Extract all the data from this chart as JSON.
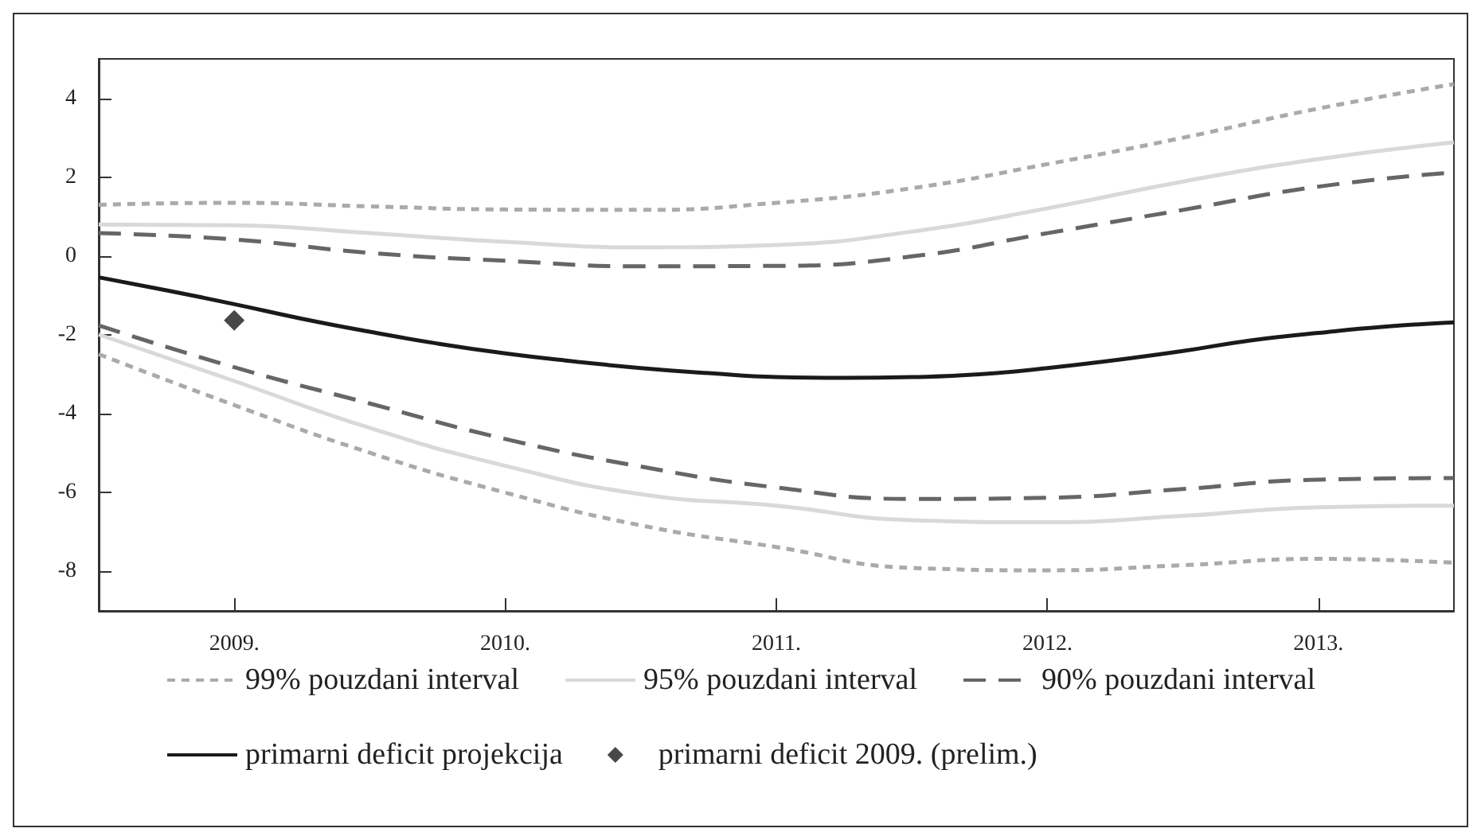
{
  "chart_data": {
    "type": "line",
    "x": [
      2008.5,
      2009,
      2009.5,
      2010,
      2010.5,
      2011,
      2011.5,
      2012,
      2012.5,
      2013,
      2013.5
    ],
    "xlim": [
      2008.5,
      2013.5
    ],
    "xticks": [
      {
        "value": 2009,
        "label": "2009."
      },
      {
        "value": 2010,
        "label": "2010."
      },
      {
        "value": 2011,
        "label": "2011."
      },
      {
        "value": 2012,
        "label": "2012."
      },
      {
        "value": 2013,
        "label": "2013."
      }
    ],
    "ylim": [
      -9,
      5
    ],
    "yticks": [
      -8,
      -6,
      -4,
      -2,
      0,
      2,
      4
    ],
    "grid": false,
    "legend": "bottom",
    "series": [
      {
        "name": "99% pouzdani interval",
        "color": "#aaaaaa",
        "line_style": "dotted",
        "values": [
          1.3,
          1.35,
          1.26,
          1.18,
          1.17,
          1.35,
          1.72,
          2.33,
          3.0,
          3.74,
          4.36
        ]
      },
      {
        "name": "95% pouzdani interval",
        "color": "#d9d9d9",
        "line_style": "solid",
        "values": [
          0.8,
          0.78,
          0.58,
          0.36,
          0.22,
          0.28,
          0.62,
          1.21,
          1.89,
          2.46,
          2.88
        ]
      },
      {
        "name": "90% pouzdani interval",
        "color": "#666666",
        "line_style": "dashed",
        "values": [
          0.58,
          0.42,
          0.08,
          -0.12,
          -0.26,
          -0.25,
          -0.01,
          0.58,
          1.17,
          1.76,
          2.12
        ]
      },
      {
        "color": "#aaaaaa",
        "line_style": "dotted",
        "values": [
          -2.49,
          -3.78,
          -4.99,
          -6.0,
          -6.83,
          -7.38,
          -7.91,
          -7.97,
          -7.84,
          -7.68,
          -7.78
        ]
      },
      {
        "color": "#d9d9d9",
        "line_style": "solid",
        "values": [
          -1.99,
          -3.17,
          -4.36,
          -5.32,
          -6.04,
          -6.33,
          -6.7,
          -6.75,
          -6.59,
          -6.37,
          -6.33
        ]
      },
      {
        "color": "#666666",
        "line_style": "dashed",
        "values": [
          -1.76,
          -2.82,
          -3.74,
          -4.64,
          -5.34,
          -5.87,
          -6.16,
          -6.13,
          -5.91,
          -5.67,
          -5.63
        ]
      },
      {
        "name": "primarni deficit projekcija",
        "color": "#1a1a1a",
        "line_style": "solid",
        "x": [
          2008.5,
          2008.75,
          2009,
          2009.25,
          2009.5,
          2009.75,
          2010,
          2010.25,
          2010.5,
          2010.75,
          2011,
          2011.25,
          2011.5,
          2011.75,
          2012,
          2012.25,
          2012.5,
          2012.75,
          2013,
          2013.25,
          2013.5
        ],
        "values": [
          -0.54,
          -0.87,
          -1.22,
          -1.59,
          -1.92,
          -2.22,
          -2.47,
          -2.67,
          -2.84,
          -2.97,
          -3.07,
          -3.09,
          -3.07,
          -3.0,
          -2.84,
          -2.64,
          -2.41,
          -2.14,
          -1.95,
          -1.79,
          -1.68
        ]
      },
      {
        "name": "primarni deficit 2009. (prelim.)",
        "type": "scatter",
        "marker": "diamond",
        "color": "#1a1a1a",
        "x": [
          2009
        ],
        "values": [
          -1.63
        ]
      }
    ]
  }
}
